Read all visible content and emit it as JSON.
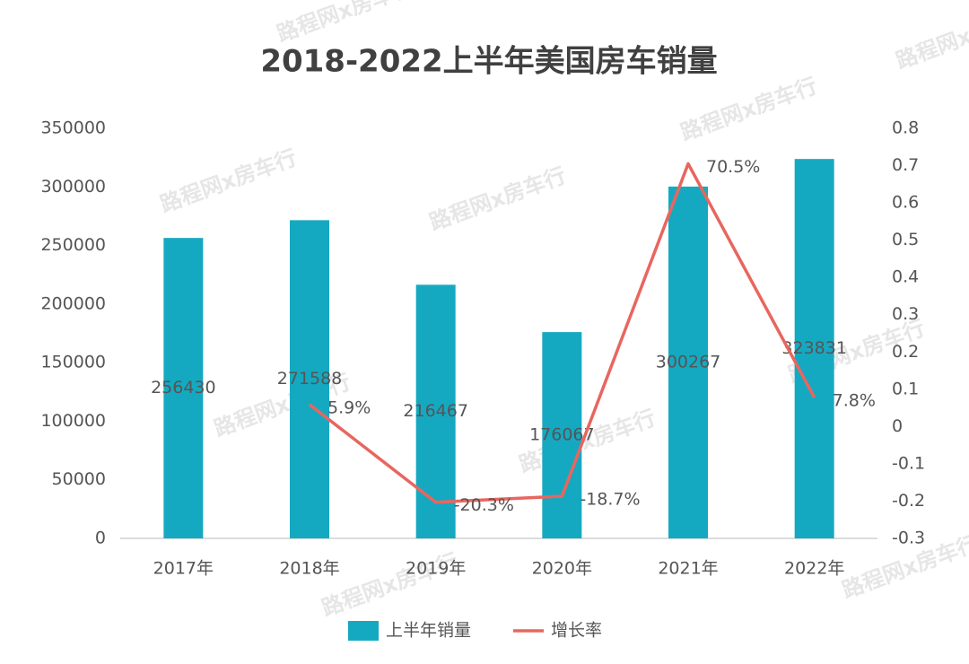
{
  "chart_data": {
    "type": "bar",
    "title": "2018-2022上半年美国房车销量",
    "watermark": "路程网x房车行",
    "categories": [
      "2017年",
      "2018年",
      "2019年",
      "2020年",
      "2021年",
      "2022年"
    ],
    "series": [
      {
        "name": "上半年销量",
        "color": "#15a9c1",
        "type": "bar",
        "values": [
          256430,
          271588,
          216467,
          176067,
          300267,
          323831
        ]
      },
      {
        "name": "增长率",
        "color": "#e8665f",
        "type": "line",
        "axis": "y2",
        "values": [
          null,
          0.059,
          -0.203,
          -0.187,
          0.705,
          0.078
        ],
        "value_labels": [
          null,
          "5.9%",
          "-20.3%",
          "-18.7%",
          "70.5%",
          "7.8%"
        ]
      }
    ],
    "ylim": [
      0,
      350000
    ],
    "yticks": [
      0,
      50000,
      100000,
      150000,
      200000,
      250000,
      300000,
      350000
    ],
    "y2lim": [
      -0.3,
      0.8
    ],
    "y2ticks": [
      -0.3,
      -0.2,
      -0.1,
      0,
      0.1,
      0.2,
      0.3,
      0.4,
      0.5,
      0.6,
      0.7,
      0.8
    ],
    "grid": false,
    "legend": "bottom"
  }
}
